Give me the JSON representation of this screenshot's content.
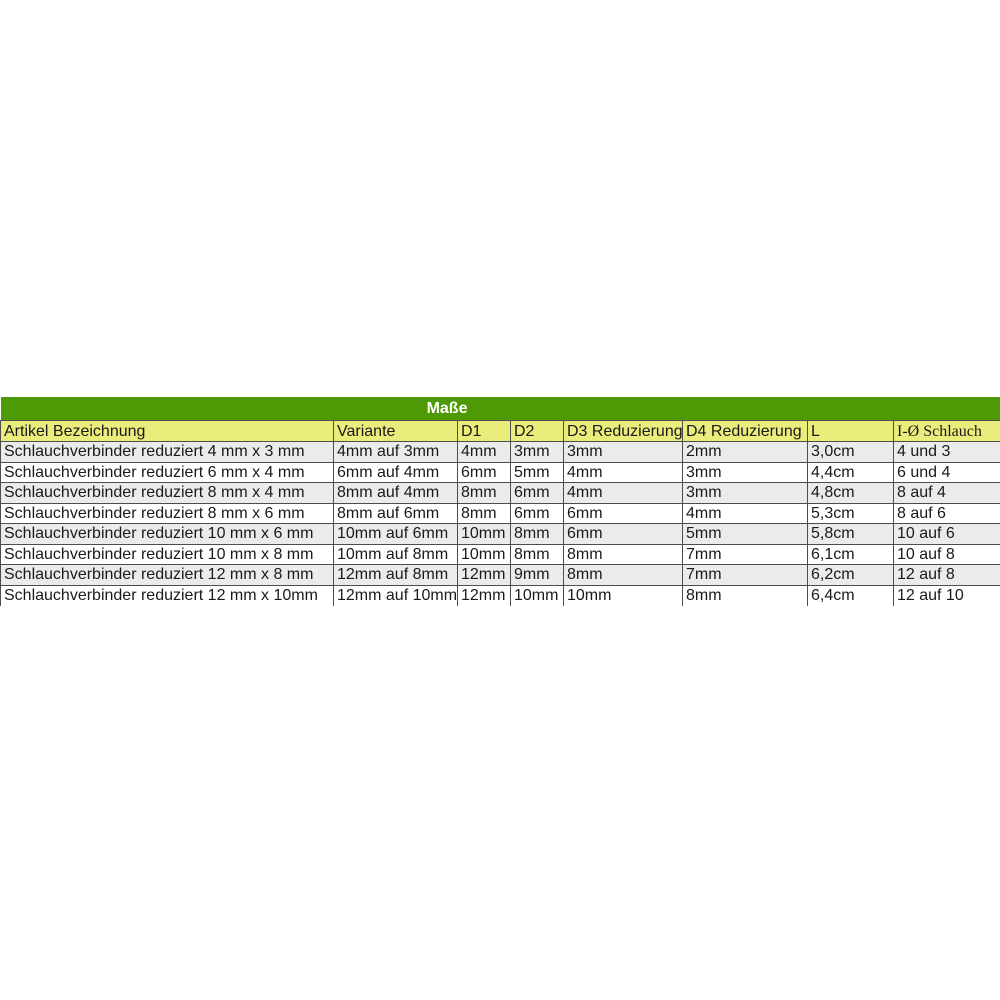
{
  "page": {
    "background": "#ffffff"
  },
  "table": {
    "title": "Maße",
    "columns": [
      {
        "key": "artikel-bezeichnung",
        "label": "Artikel Bezeichnung"
      },
      {
        "key": "variante",
        "label": "Variante"
      },
      {
        "key": "d1",
        "label": "D1"
      },
      {
        "key": "d2",
        "label": "D2"
      },
      {
        "key": "d3-reduzierung",
        "label": "D3 Reduzierung"
      },
      {
        "key": "d4-reduzierung",
        "label": "D4 Reduzierung"
      },
      {
        "key": "l",
        "label": "L"
      },
      {
        "key": "i-o-schlauch",
        "label": "I-Ø Schlauch"
      }
    ],
    "rows": [
      [
        "Schlauchverbinder reduziert 4 mm x 3 mm",
        "4mm auf 3mm",
        "4mm",
        "3mm",
        "3mm",
        "2mm",
        "3,0cm",
        "4 und 3"
      ],
      [
        "Schlauchverbinder reduziert 6 mm x 4 mm",
        "6mm auf 4mm",
        "6mm",
        "5mm",
        "4mm",
        "3mm",
        "4,4cm",
        "6 und 4"
      ],
      [
        "Schlauchverbinder reduziert 8 mm x 4 mm",
        "8mm auf 4mm",
        "8mm",
        "6mm",
        "4mm",
        "3mm",
        "4,8cm",
        "8 auf 4"
      ],
      [
        "Schlauchverbinder reduziert 8 mm x 6 mm",
        "8mm auf 6mm",
        "8mm",
        "6mm",
        "6mm",
        "4mm",
        "5,3cm",
        "8 auf 6"
      ],
      [
        "Schlauchverbinder reduziert 10 mm x 6 mm",
        "10mm auf 6mm",
        "10mm",
        "8mm",
        "6mm",
        "5mm",
        "5,8cm",
        "10 auf 6"
      ],
      [
        "Schlauchverbinder reduziert 10 mm x 8 mm",
        "10mm auf 8mm",
        "10mm",
        "8mm",
        "8mm",
        "7mm",
        "6,1cm",
        "10 auf 8"
      ],
      [
        "Schlauchverbinder reduziert 12 mm x 8 mm",
        "12mm auf 8mm",
        "12mm",
        "9mm",
        "8mm",
        "7mm",
        "6,2cm",
        "12 auf 8"
      ],
      [
        "Schlauchverbinder reduziert 12 mm x 10mm",
        "12mm auf 10mm",
        "12mm",
        "10mm",
        "10mm",
        "8mm",
        "6,4cm",
        "12 auf 10"
      ]
    ],
    "colors": {
      "title_bg": "#4e9a06",
      "title_text": "#ffffff",
      "header_bg": "#eaec7c",
      "row_alt_bg": "#ebebeb",
      "row_bg": "#ffffff",
      "border": "#4d4d4d",
      "text": "#1a1a1a"
    }
  }
}
